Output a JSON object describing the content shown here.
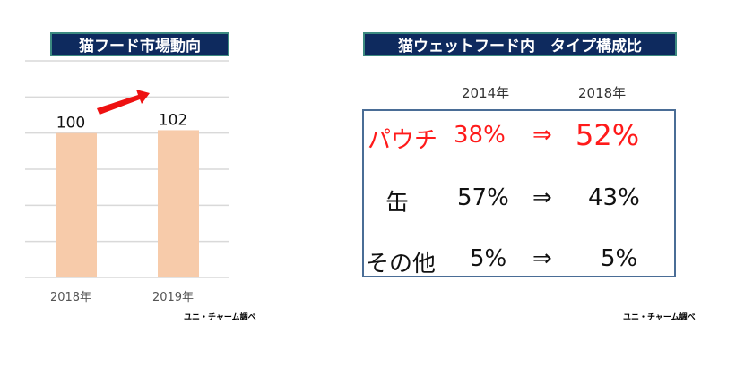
{
  "left_panel": {
    "title": "猫フード市場動向",
    "source": "ユニ・チャーム調べ"
  },
  "chart_data": {
    "type": "bar",
    "title": "猫フード市場動向",
    "categories": [
      "2018年",
      "2019年"
    ],
    "values": [
      100,
      102
    ],
    "data_labels": [
      "100",
      "102"
    ],
    "xlabel": "",
    "ylabel": "",
    "ylim": [
      0,
      150
    ],
    "grid": true,
    "bar_color": "#f7cbaa",
    "annotation": "red arrow indicating increase"
  },
  "right_panel": {
    "title": "猫ウェットフード内　タイプ構成比",
    "headers": [
      "2014年",
      "2018年"
    ],
    "rows": [
      {
        "label": "パウチ",
        "y2014": "38%",
        "arrow": "⇒",
        "y2018": "52%",
        "color": "#ff1a1a"
      },
      {
        "label": "缶",
        "y2014": "57%",
        "arrow": "⇒",
        "y2018": "43%",
        "color": "#111111"
      },
      {
        "label": "その他",
        "y2014": "5%",
        "arrow": "⇒",
        "y2018": "5%",
        "color": "#111111"
      }
    ],
    "source": "ユニ・チャーム調べ"
  }
}
